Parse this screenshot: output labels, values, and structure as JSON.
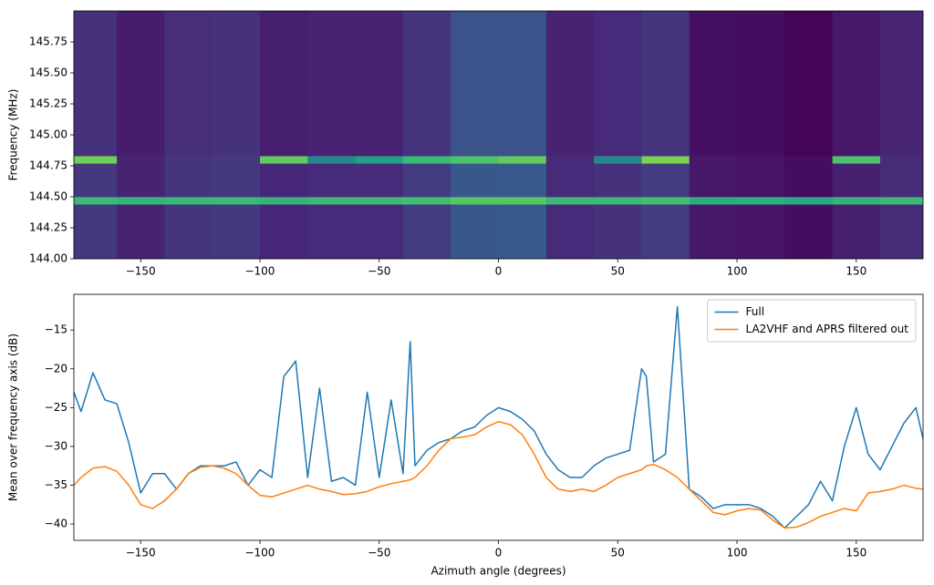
{
  "chart_data": [
    {
      "type": "heatmap",
      "ylabel": "Frequency (MHz)",
      "colormap": "viridis",
      "x_edges": [
        -178,
        -160,
        -140,
        -120,
        -100,
        -80,
        -60,
        -40,
        -20,
        0,
        20,
        40,
        60,
        80,
        100,
        120,
        140,
        160,
        178
      ],
      "y_edges": [
        144.0,
        144.44,
        144.5,
        144.77,
        144.83,
        146.0
      ],
      "z": [
        [
          -33.5,
          -36.5,
          -34,
          -33.5,
          -36,
          -35.5,
          -35.5,
          -33,
          -28.5,
          -28,
          -35.5,
          -34.5,
          -33,
          -38,
          -38.5,
          -39.5,
          -37,
          -35.3
        ],
        [
          -10,
          -11,
          -10,
          -10,
          -11,
          -10,
          -10,
          -9,
          -7,
          -7,
          -10,
          -10,
          -9,
          -12,
          -12,
          -13,
          -11,
          -10
        ],
        [
          -33.5,
          -36.5,
          -34,
          -33.5,
          -36,
          -35.5,
          -35.5,
          -33,
          -28.5,
          -28,
          -35.5,
          -34.5,
          -33,
          -38,
          -38.5,
          -39.5,
          -37,
          -35.3
        ],
        [
          -5,
          -36.5,
          -34,
          -33.5,
          -6,
          -20,
          -15,
          -10,
          -8,
          -6,
          -35.5,
          -20,
          -4,
          -38,
          -38.5,
          -39.5,
          -8,
          -35.3
        ],
        [
          -34.5,
          -37.5,
          -35,
          -34.5,
          -37,
          -36.5,
          -36.5,
          -34,
          -29.5,
          -29,
          -36.5,
          -35.5,
          -34,
          -39,
          -39.5,
          -40.5,
          -38,
          -36.3
        ]
      ],
      "zlim": [
        -41,
        5
      ],
      "xlim": [
        -178,
        178
      ],
      "ylim": [
        144.0,
        146.0
      ],
      "xticks": [
        {
          "value": -150,
          "label": "−150"
        },
        {
          "value": -100,
          "label": "−100"
        },
        {
          "value": -50,
          "label": "−50"
        },
        0,
        50,
        100,
        150
      ],
      "yticks": [
        {
          "value": 144.0,
          "label": "144.00"
        },
        {
          "value": 144.25,
          "label": "144.25"
        },
        {
          "value": 144.5,
          "label": "144.50"
        },
        {
          "value": 144.75,
          "label": "144.75"
        },
        {
          "value": 145.0,
          "label": "145.00"
        },
        {
          "value": 145.25,
          "label": "145.25"
        },
        {
          "value": 145.5,
          "label": "145.50"
        },
        {
          "value": 145.75,
          "label": "145.75"
        }
      ]
    },
    {
      "type": "line",
      "xlabel": "Azimuth angle (degrees)",
      "ylabel": "Mean over frequency axis (dB)",
      "legend": "upper right",
      "x": [
        -178,
        -175,
        -170,
        -165,
        -160,
        -155,
        -150,
        -145,
        -140,
        -135,
        -130,
        -125,
        -120,
        -115,
        -110,
        -105,
        -100,
        -95,
        -90,
        -85,
        -80,
        -75,
        -70,
        -65,
        -60,
        -55,
        -50,
        -45,
        -40,
        -37,
        -35,
        -30,
        -25,
        -20,
        -15,
        -10,
        -5,
        0,
        5,
        10,
        15,
        20,
        25,
        30,
        35,
        40,
        45,
        50,
        55,
        60,
        62,
        65,
        70,
        75,
        80,
        85,
        90,
        95,
        100,
        105,
        110,
        115,
        120,
        125,
        130,
        135,
        140,
        145,
        150,
        155,
        160,
        165,
        170,
        175,
        178
      ],
      "series": [
        {
          "name": "Full",
          "color": "#1f77b4",
          "values": [
            -23,
            -25.5,
            -20.5,
            -24,
            -24.5,
            -29.5,
            -36,
            -33.5,
            -33.5,
            -35.5,
            -33.5,
            -32.5,
            -32.5,
            -32.5,
            -32,
            -35,
            -33,
            -34,
            -21,
            -19,
            -34,
            -22.5,
            -34.5,
            -34,
            -35,
            -23,
            -34,
            -24,
            -33.5,
            -16.5,
            -32.5,
            -30.5,
            -29.5,
            -29,
            -28,
            -27.5,
            -26,
            -25,
            -25.5,
            -26.5,
            -28,
            -31,
            -33,
            -34,
            -34,
            -32.5,
            -31.5,
            -31,
            -30.5,
            -20,
            -21,
            -32,
            -31,
            -12,
            -35.5,
            -36.5,
            -38,
            -37.5,
            -37.5,
            -37.5,
            -38,
            -39,
            -40.5,
            -39,
            -37.5,
            -34.5,
            -37,
            -30,
            -25,
            -31,
            -33,
            -30,
            -27,
            -25,
            -29
          ]
        },
        {
          "name": "LA2VHF and APRS filtered out",
          "color": "#ff7f0e",
          "values": [
            -35,
            -34,
            -32.8,
            -32.6,
            -33.2,
            -35,
            -37.5,
            -38,
            -37,
            -35.5,
            -33.5,
            -32.7,
            -32.5,
            -32.8,
            -33.5,
            -35,
            -36.3,
            -36.5,
            -36,
            -35.5,
            -35,
            -35.5,
            -35.8,
            -36.2,
            -36.1,
            -35.8,
            -35.2,
            -34.8,
            -34.5,
            -34.3,
            -34,
            -32.5,
            -30.5,
            -29,
            -28.8,
            -28.5,
            -27.5,
            -26.8,
            -27.2,
            -28.5,
            -31,
            -34,
            -35.5,
            -35.8,
            -35.5,
            -35.8,
            -35,
            -34,
            -33.5,
            -33,
            -32.5,
            -32.3,
            -33,
            -34,
            -35.5,
            -37,
            -38.5,
            -38.8,
            -38.3,
            -38,
            -38.2,
            -39.5,
            -40.5,
            -40.4,
            -39.8,
            -39,
            -38.5,
            -38,
            -38.3,
            -36,
            -35.8,
            -35.5,
            -35,
            -35.4,
            -35.5
          ]
        }
      ],
      "xlim": [
        -178,
        178
      ],
      "ylim": [
        -42.1,
        -10.4
      ],
      "xticks": [
        {
          "value": -150,
          "label": "−150"
        },
        {
          "value": -100,
          "label": "−100"
        },
        {
          "value": -50,
          "label": "−50"
        },
        0,
        50,
        100,
        150
      ],
      "yticks": [
        {
          "value": -40,
          "label": "−40"
        },
        {
          "value": -35,
          "label": "−35"
        },
        {
          "value": -30,
          "label": "−30"
        },
        {
          "value": -25,
          "label": "−25"
        },
        {
          "value": -20,
          "label": "−20"
        },
        {
          "value": -15,
          "label": "−15"
        }
      ]
    }
  ]
}
